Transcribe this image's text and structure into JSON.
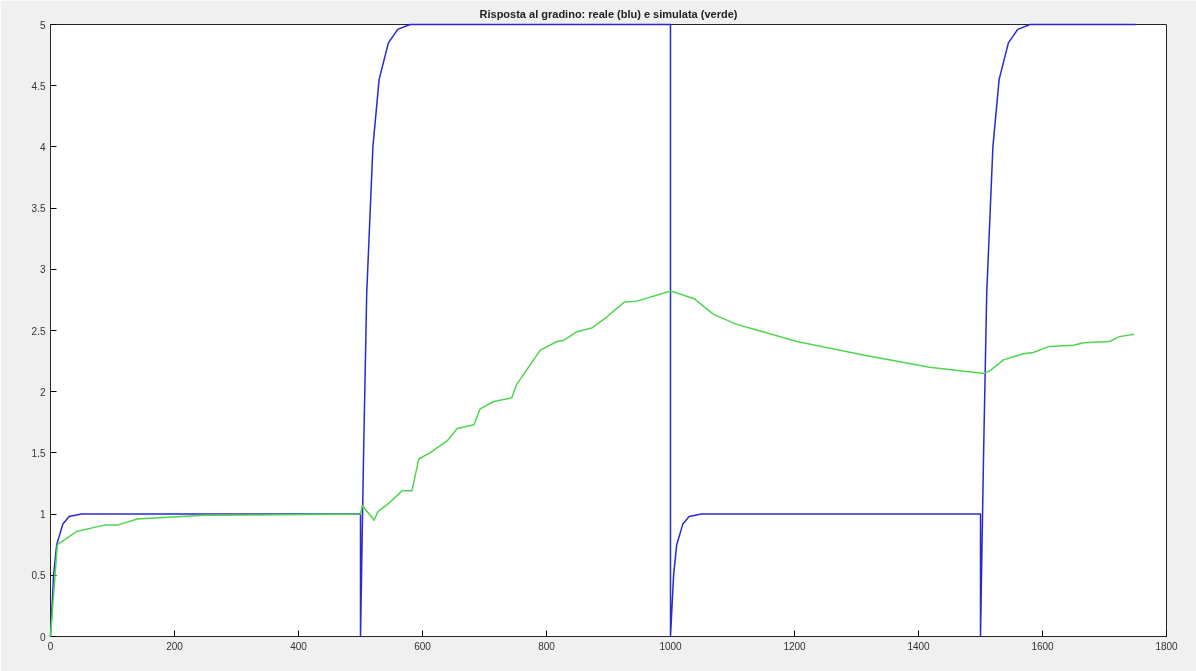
{
  "chart_data": {
    "type": "line",
    "title": "Risposta al gradino: reale (blu) e simulata (verde)",
    "xlim": [
      0,
      1800
    ],
    "ylim": [
      0,
      5
    ],
    "xticks": [
      0,
      200,
      400,
      600,
      800,
      1000,
      1200,
      1400,
      1600,
      1800
    ],
    "yticks": [
      0,
      {
        "value": 0.5,
        "label": "0.5"
      },
      1,
      {
        "value": 1.5,
        "label": "1.5"
      },
      2,
      {
        "value": 2.5,
        "label": "2.5"
      },
      3,
      {
        "value": 3.5,
        "label": "3.5"
      },
      4,
      {
        "value": 4.5,
        "label": "4.5"
      },
      5
    ],
    "grid": false,
    "series": [
      {
        "color": "#2a2ad0",
        "x": [
          0,
          5,
          10,
          20,
          30,
          50,
          500,
          500,
          505,
          510,
          520,
          530,
          545,
          560,
          580,
          1000,
          1000,
          1005,
          1010,
          1020,
          1030,
          1050,
          1500,
          1500,
          1505,
          1510,
          1520,
          1530,
          1545,
          1560,
          1580,
          1750
        ],
        "values": [
          0,
          0.5,
          0.75,
          0.92,
          0.98,
          1,
          1,
          0,
          1.5,
          2.8,
          4.0,
          4.55,
          4.85,
          4.96,
          5,
          5,
          0,
          0.5,
          0.75,
          0.92,
          0.98,
          1,
          1,
          0,
          1.5,
          2.8,
          4.0,
          4.55,
          4.85,
          4.96,
          5,
          5
        ]
      },
      {
        "color": "#4fd64f",
        "x": [
          0,
          11,
          43,
          87,
          108,
          140,
          248,
          500,
          503,
          522,
          528,
          546,
          567,
          583,
          594,
          612,
          640,
          656,
          683,
          693,
          715,
          744,
          752,
          790,
          817,
          828,
          849,
          873,
          897,
          925,
          946,
          999,
          1002,
          1038,
          1070,
          1107,
          1204,
          1311,
          1418,
          1502,
          1505,
          1515,
          1537,
          1569,
          1585,
          1611,
          1650,
          1666,
          1708,
          1724,
          1748
        ],
        "values": [
          0,
          0.75,
          0.86,
          0.91,
          0.91,
          0.96,
          0.99,
          1,
          1.07,
          0.95,
          1.02,
          1.09,
          1.19,
          1.19,
          1.45,
          1.5,
          1.6,
          1.7,
          1.73,
          1.86,
          1.92,
          1.95,
          2.06,
          2.34,
          2.41,
          2.42,
          2.49,
          2.52,
          2.61,
          2.73,
          2.74,
          2.82,
          2.82,
          2.76,
          2.63,
          2.55,
          2.41,
          2.3,
          2.2,
          2.15,
          2.15,
          2.17,
          2.26,
          2.31,
          2.32,
          2.37,
          2.38,
          2.4,
          2.41,
          2.45,
          2.47
        ]
      }
    ]
  }
}
